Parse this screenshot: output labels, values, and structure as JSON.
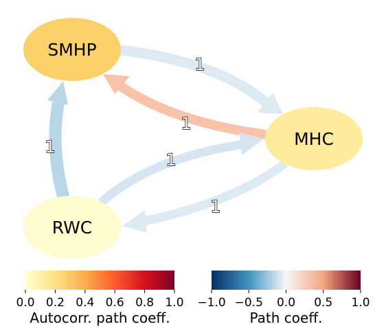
{
  "nodes": [
    {
      "id": "SMHP",
      "label": "SMHP",
      "color": "#fdd16a"
    },
    {
      "id": "MHC",
      "label": "MHC",
      "color": "#feeb9b"
    },
    {
      "id": "RWC",
      "label": "RWC",
      "color": "#fffdd0"
    }
  ],
  "edges": [
    {
      "from": "SMHP",
      "to": "MHC",
      "label": "1",
      "color": "#dceaf3"
    },
    {
      "from": "MHC",
      "to": "SMHP",
      "label": "1",
      "color": "#f8c3a8"
    },
    {
      "from": "RWC",
      "to": "SMHP",
      "label": "1",
      "color": "#b7d6e8"
    },
    {
      "from": "RWC",
      "to": "MHC",
      "label": "1",
      "color": "#d6e6f1"
    },
    {
      "from": "MHC",
      "to": "RWC",
      "label": "1",
      "color": "#dceaf3"
    }
  ],
  "colorbars": {
    "autocorr": {
      "title": "Autocorr. path coeff.",
      "ticks": [
        "0.0",
        "0.2",
        "0.4",
        "0.6",
        "0.8",
        "1.0"
      ],
      "colors": [
        "#ffffcc",
        "#fee287",
        "#fdae4a",
        "#fc5b2e",
        "#d41020",
        "#800026"
      ]
    },
    "path": {
      "title": "Path coeff.",
      "ticks": [
        "−1.0",
        "−0.5",
        "0.0",
        "0.5",
        "1.0"
      ],
      "colors": [
        "#053061",
        "#4393c3",
        "#f7f7f7",
        "#f4a582",
        "#67001f"
      ]
    }
  }
}
